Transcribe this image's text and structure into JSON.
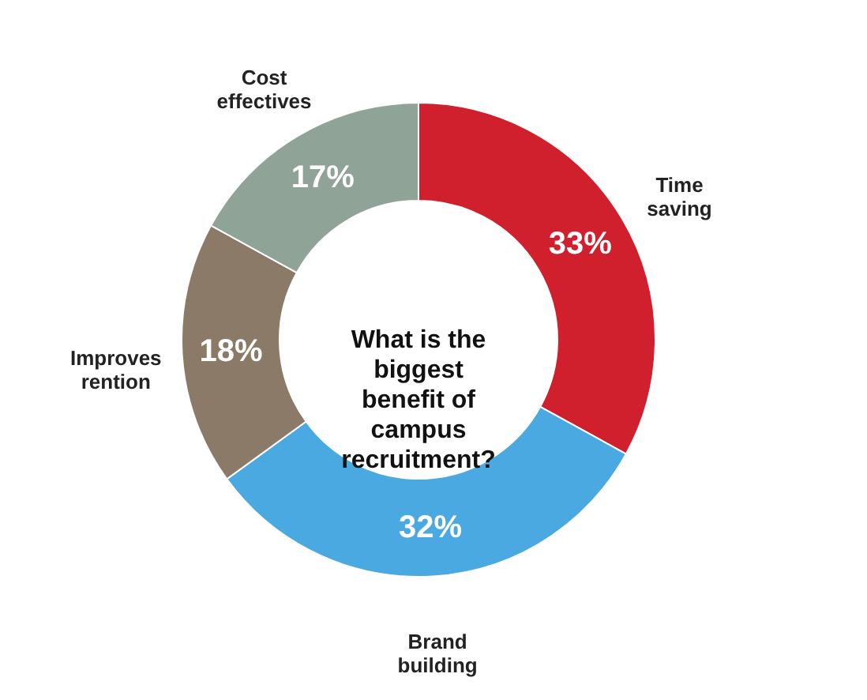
{
  "chart_data": {
    "type": "donut",
    "title": "What is the biggest benefit of campus recruitment?",
    "categories": [
      "Time saving",
      "Brand building",
      "Improves rention",
      "Cost effectives"
    ],
    "values": [
      33,
      32,
      18,
      17
    ],
    "colors": [
      "#d0202e",
      "#4aa9e0",
      "#8b7a68",
      "#8fa396"
    ],
    "value_labels": [
      "33%",
      "32%",
      "18%",
      "17%"
    ],
    "legend": false
  }
}
